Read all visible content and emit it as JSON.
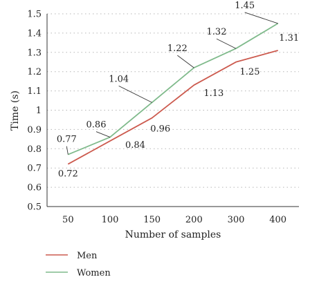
{
  "chart_data": {
    "type": "line",
    "categories": [
      "50",
      "100",
      "150",
      "200",
      "300",
      "400"
    ],
    "series": [
      {
        "name": "Men",
        "color": "#cc5a4e",
        "values": [
          0.72,
          0.84,
          0.96,
          1.13,
          1.25,
          1.31
        ]
      },
      {
        "name": "Women",
        "color": "#7fba8b",
        "values": [
          0.77,
          0.86,
          1.04,
          1.22,
          1.32,
          1.45
        ]
      }
    ],
    "data_labels": {
      "Men": [
        "0.72",
        "0.84",
        "0.96",
        "1.13",
        "1.25",
        "1.31"
      ],
      "Women": [
        "0.77",
        "0.86",
        "1.04",
        "1.22",
        "1.32",
        "1.45"
      ]
    },
    "title": "",
    "xlabel": "Number of samples",
    "ylabel": "Time (s)",
    "ylim": [
      0.5,
      1.5
    ],
    "yticks": [
      "0.5",
      "0.6",
      "0.7",
      "0.8",
      "0.9",
      "1",
      "1.1",
      "1.2",
      "1.3",
      "1.4",
      "1.5"
    ],
    "grid": "horizontal dotted",
    "legend_position": "bottom-left"
  }
}
